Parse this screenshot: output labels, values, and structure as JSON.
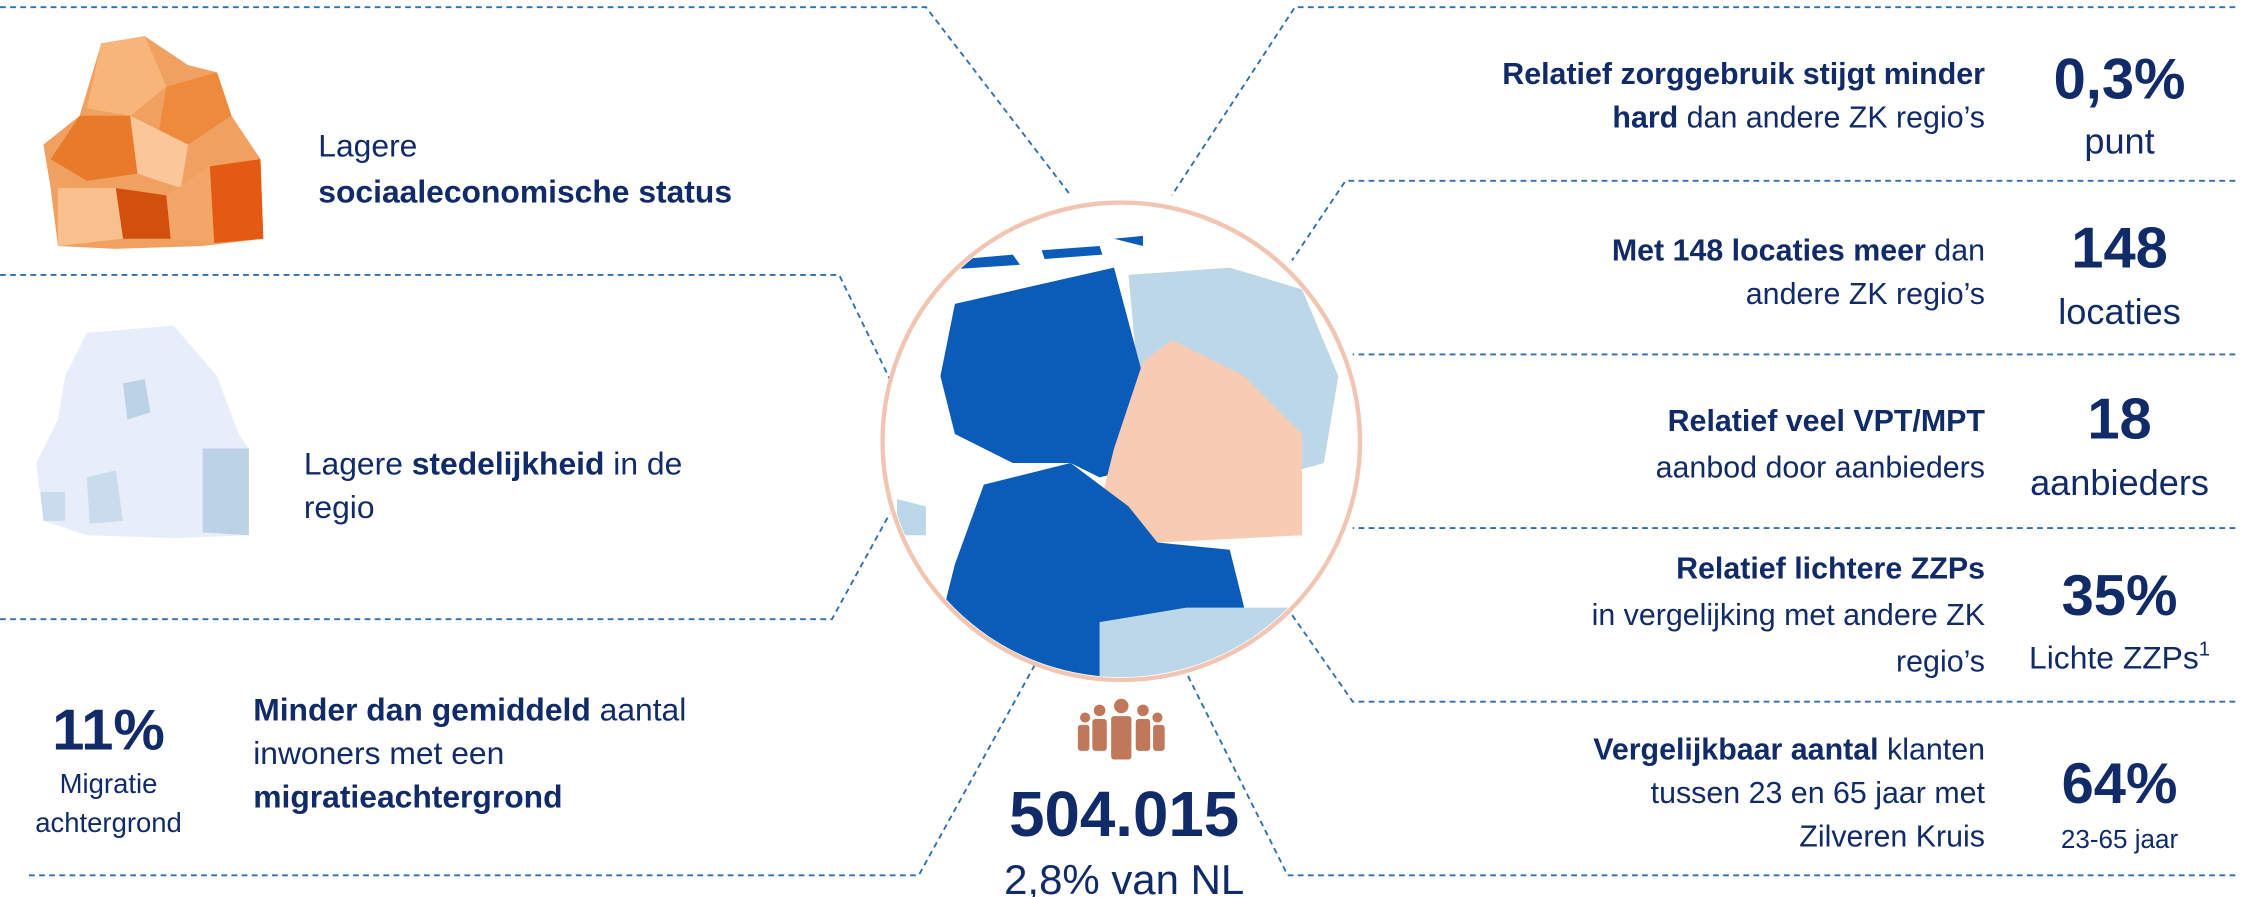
{
  "left_items": [
    {
      "lines": [
        [
          {
            "text": "Lagere"
          }
        ],
        [
          {
            "text": "sociaaleconomische status",
            "bold": true
          }
        ]
      ]
    },
    {
      "lines": [
        [
          {
            "text": "Lagere "
          },
          {
            "text": "stedelijkheid",
            "bold": true
          },
          {
            "text": " in de"
          }
        ],
        [
          {
            "text": "regio"
          }
        ]
      ]
    },
    {
      "stat": "11%",
      "stat_label": [
        "Migratie",
        "achtergrond"
      ],
      "lines": [
        [
          {
            "text": "Minder dan gemiddeld",
            "bold": true
          },
          {
            "text": " aantal"
          }
        ],
        [
          {
            "text": "inwoners met een"
          }
        ],
        [
          {
            "text": "migratieachtergrond",
            "bold": true
          }
        ]
      ]
    }
  ],
  "right_items": [
    {
      "lines": [
        [
          {
            "text": "Relatief zorggebruik stijgt minder",
            "bold": true
          }
        ],
        [
          {
            "text": "hard",
            "bold": true
          },
          {
            "text": " dan andere ZK regio’s"
          }
        ]
      ],
      "stat": "0,3%",
      "unit": "punt"
    },
    {
      "lines": [
        [
          {
            "text": "Met 148 locaties meer",
            "bold": true
          },
          {
            "text": " dan"
          }
        ],
        [
          {
            "text": "andere ZK regio’s"
          }
        ]
      ],
      "stat": "148",
      "unit": "locaties"
    },
    {
      "lines": [
        [
          {
            "text": "Relatief veel VPT/MPT",
            "bold": true
          }
        ],
        [
          {
            "text": "aanbod door aanbieders"
          }
        ]
      ],
      "stat": "18",
      "unit": "aanbieders"
    },
    {
      "lines": [
        [
          {
            "text": "Relatief lichtere ZZPs",
            "bold": true
          }
        ],
        [
          {
            "text": "in vergelijking met andere ZK"
          }
        ],
        [
          {
            "text": "regio’s"
          }
        ]
      ],
      "stat": "35%",
      "unit": "Lichte ZZPs",
      "unit_sup": "1"
    },
    {
      "lines": [
        [
          {
            "text": "Vergelijkbaar aantal",
            "bold": true
          },
          {
            "text": " klanten"
          }
        ],
        [
          {
            "text": "tussen 23 en 65 jaar met"
          }
        ],
        [
          {
            "text": "Zilveren Kruis"
          }
        ]
      ],
      "stat": "64%",
      "unit": "23-65 jaar"
    }
  ],
  "center": {
    "population": "504.015",
    "share": "2,8% van NL"
  }
}
